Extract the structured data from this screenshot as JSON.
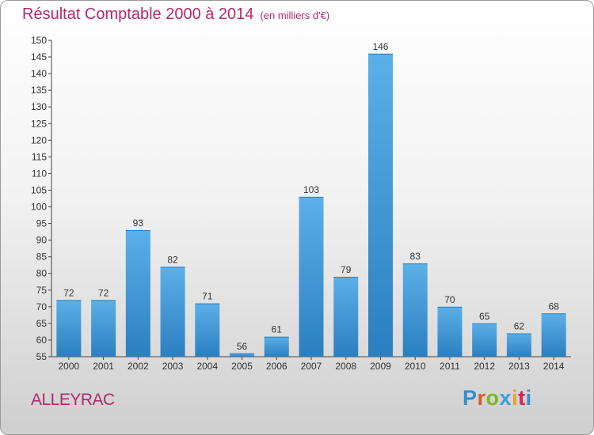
{
  "header": {
    "title": "Résultat Comptable 2000 à 2014",
    "subtitle": "(en milliers d'€)"
  },
  "footer": {
    "place_name": "ALLEYRAC",
    "brand": "Proxiti"
  },
  "colors": {
    "accent": "#b5286e",
    "bar_top": "#5cb0e8",
    "bar_bottom": "#2a7fc0",
    "brand_letters": [
      "#2f8fd8",
      "#e0562a",
      "#7ab828",
      "#3aa0e0",
      "#f0a020",
      "#d8205a",
      "#2f8fd8"
    ]
  },
  "chart_data": {
    "type": "bar",
    "title": "Résultat Comptable 2000 à 2014",
    "subtitle": "(en milliers d'€)",
    "xlabel": "",
    "ylabel": "",
    "categories": [
      "2000",
      "2001",
      "2002",
      "2003",
      "2004",
      "2005",
      "2006",
      "2007",
      "2008",
      "2009",
      "2010",
      "2011",
      "2012",
      "2013",
      "2014"
    ],
    "values": [
      72,
      72,
      93,
      82,
      71,
      56,
      61,
      103,
      79,
      146,
      83,
      70,
      65,
      62,
      68
    ],
    "ylim": [
      55,
      150
    ],
    "ytick_step": 5,
    "grid": false,
    "legend": "none"
  }
}
